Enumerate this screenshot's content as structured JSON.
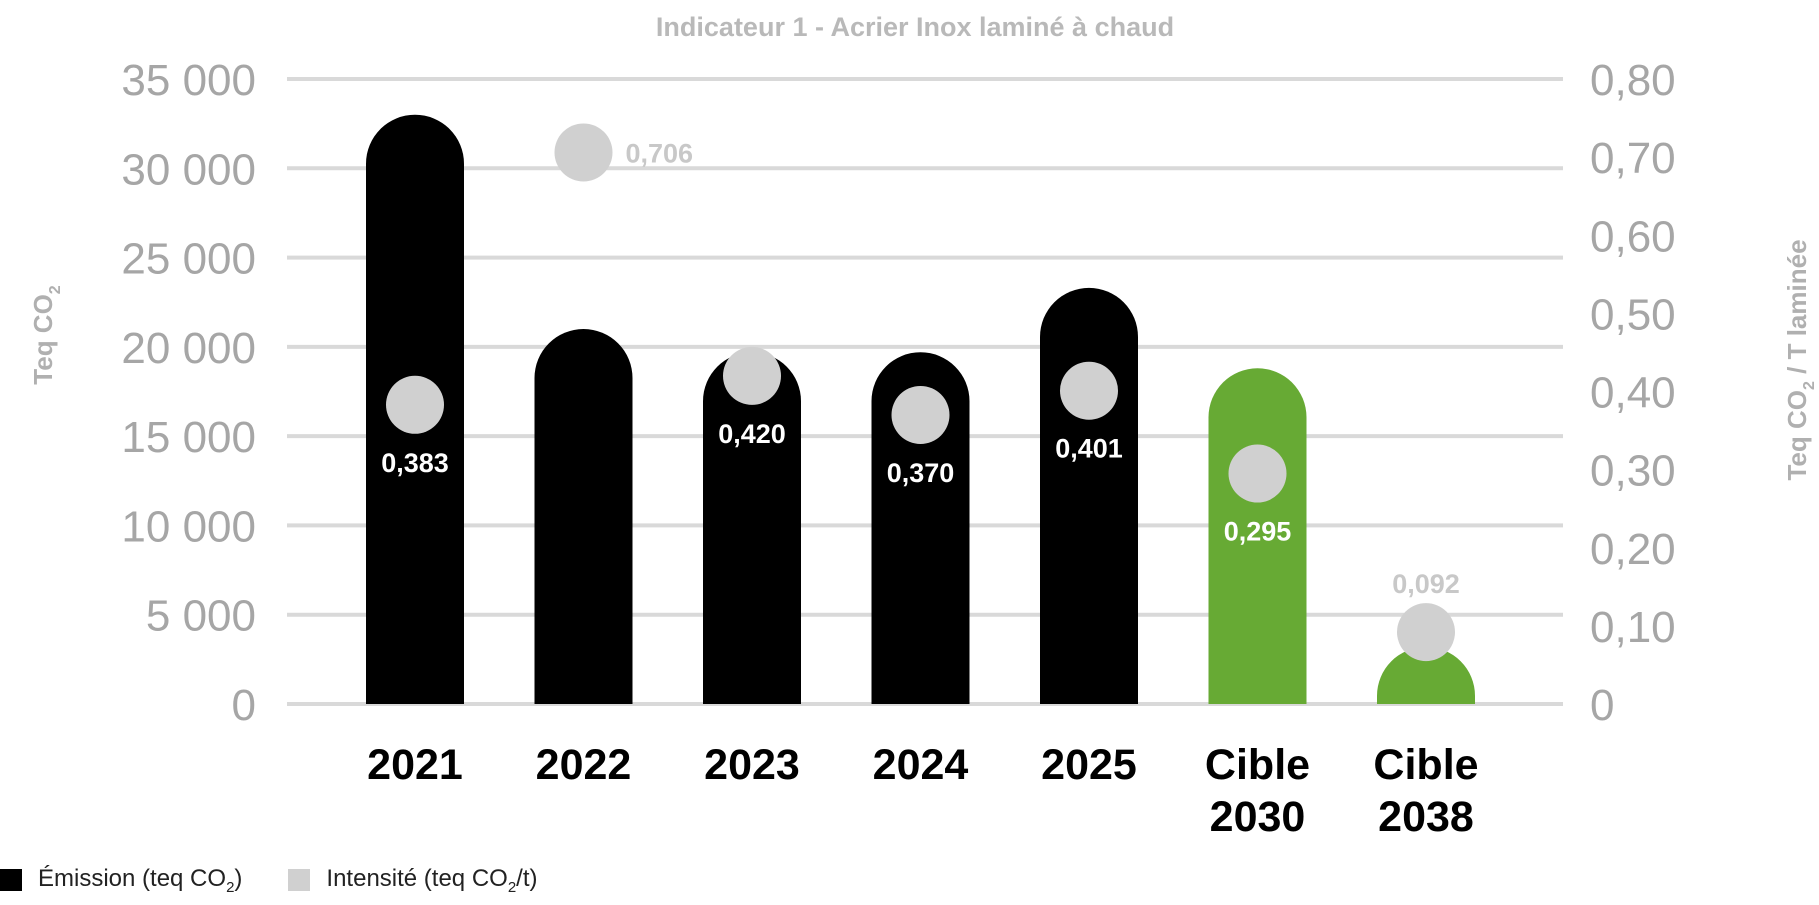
{
  "chart_data": {
    "type": "bar",
    "title": "Indicateur 1 - Acrier Inox laminé à chaud",
    "categories": [
      [
        "2021"
      ],
      [
        "2022"
      ],
      [
        "2023"
      ],
      [
        "2024"
      ],
      [
        "2025"
      ],
      [
        "Cible",
        "2030"
      ],
      [
        "Cible",
        "2038"
      ]
    ],
    "series": [
      {
        "name": "Émission (teq CO2)",
        "axis": "left",
        "values": [
          33000,
          21000,
          19700,
          19700,
          23300,
          18800,
          3200
        ],
        "colors": [
          "#000000",
          "#000000",
          "#000000",
          "#000000",
          "#000000",
          "#67aa34",
          "#67aa34"
        ]
      },
      {
        "name": "Intensité (teq CO2/t)",
        "axis": "right",
        "values": [
          0.383,
          0.706,
          0.42,
          0.37,
          0.401,
          0.295,
          0.092
        ],
        "labels": [
          "0,383",
          "0,706",
          "0,420",
          "0,370",
          "0,401",
          "0,295",
          "0,092"
        ],
        "color": "#d0d0d0"
      }
    ],
    "y_left": {
      "label": "Teq CO2",
      "range": [
        0,
        35000
      ],
      "ticks": [
        "0",
        "5 000",
        "10 000",
        "15 000",
        "20 000",
        "25 000",
        "30 000",
        "35 000"
      ]
    },
    "y_right": {
      "label": "Teq CO2 / T laminée",
      "range": [
        0,
        0.8
      ],
      "ticks": [
        "0",
        "0,10",
        "0,20",
        "0,30",
        "0,40",
        "0,50",
        "0,60",
        "0,70",
        "0,80"
      ]
    },
    "grid": true,
    "legend_position": "bottom-left"
  },
  "legend": {
    "emission": {
      "text": "Émission (teq CO",
      "sub": "2",
      "tail": ")",
      "color": "#000000"
    },
    "intensity": {
      "text": "Intensité (teq CO",
      "sub": "2",
      "tail": "/t)",
      "color": "#d0d0d0"
    }
  }
}
